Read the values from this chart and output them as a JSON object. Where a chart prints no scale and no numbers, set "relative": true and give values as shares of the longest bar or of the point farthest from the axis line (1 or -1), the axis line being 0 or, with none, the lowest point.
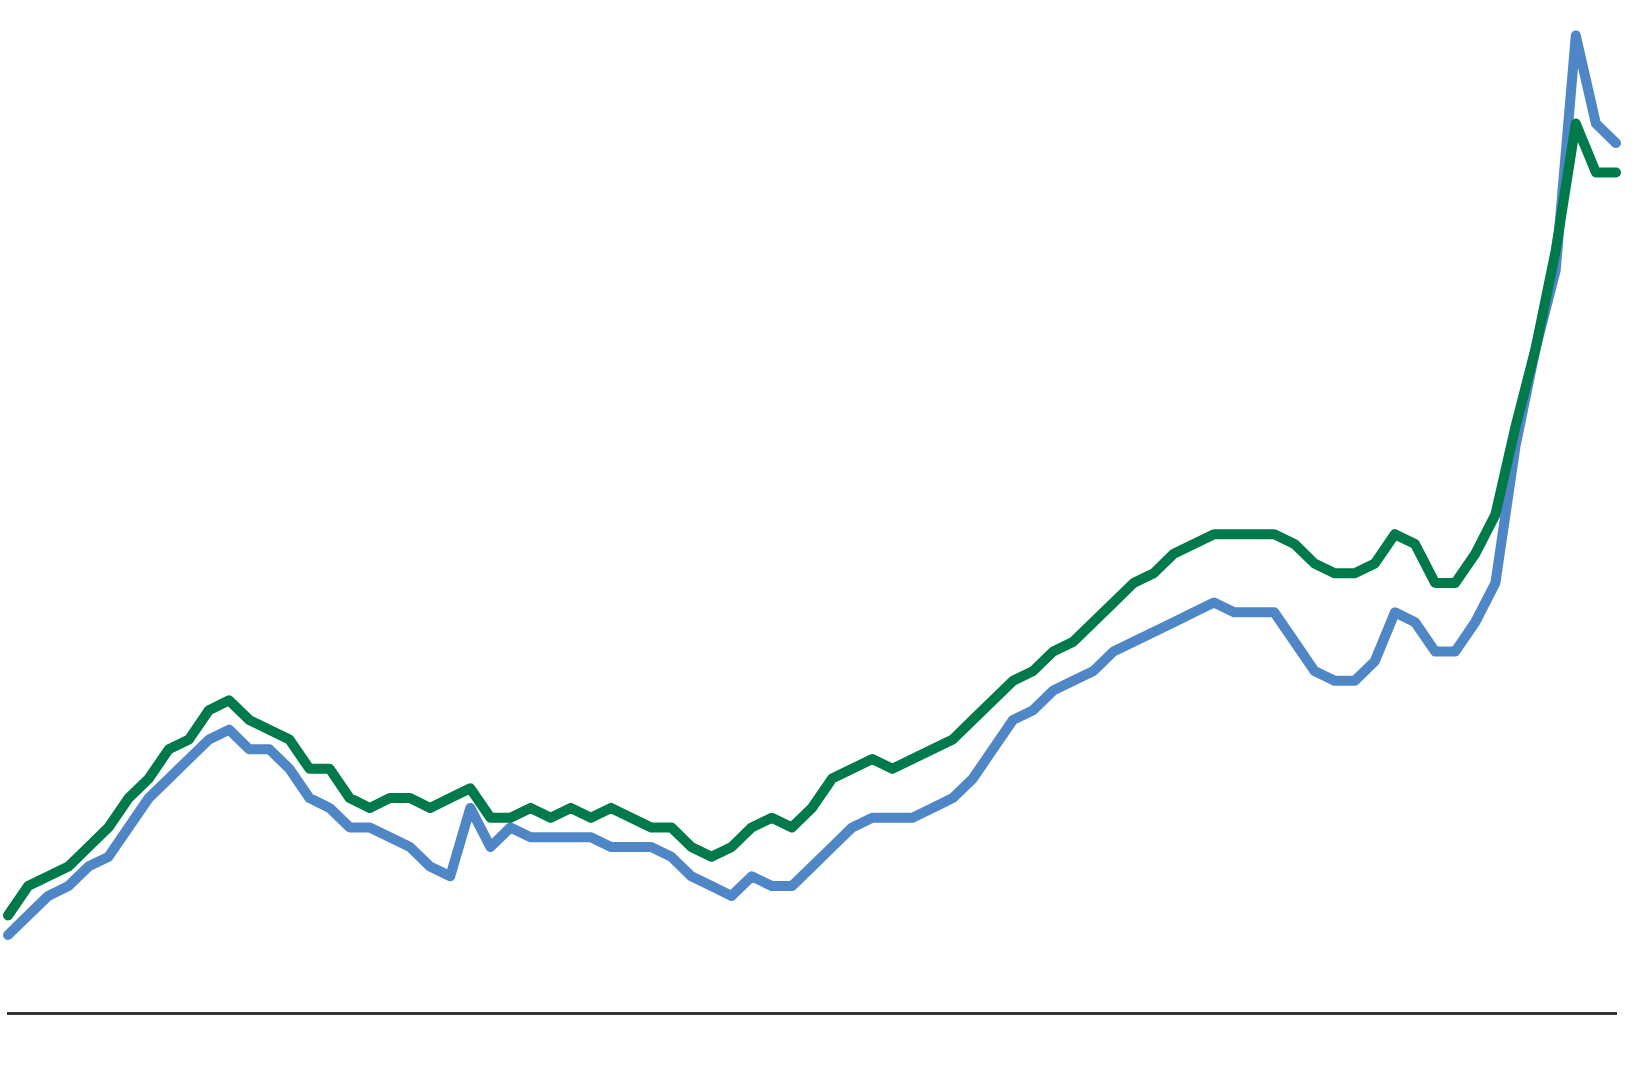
{
  "chart_data": {
    "type": "line",
    "relative": true,
    "grid": false,
    "legend": false,
    "marker": "none",
    "line_style": "solid",
    "categories": [
      null,
      null,
      null,
      null,
      null,
      null,
      null,
      null,
      null,
      null,
      null,
      null,
      null,
      null,
      null,
      null,
      null,
      null,
      null,
      null,
      null,
      null,
      null,
      null,
      null,
      null,
      null,
      null,
      null,
      null,
      null,
      null,
      null,
      null,
      null,
      null,
      null,
      null,
      null,
      null,
      null,
      null,
      null,
      null,
      null,
      null,
      null,
      null,
      null,
      null,
      null,
      null,
      null,
      null,
      null,
      null,
      null,
      null,
      null,
      null,
      null,
      null,
      null,
      null,
      null,
      null,
      null,
      null,
      null,
      null,
      null,
      null,
      null,
      null,
      null,
      null,
      null,
      null,
      null,
      null,
      null
    ],
    "series": [
      {
        "color": "#007a4a",
        "values": [
          0.1,
          0.13,
          0.14,
          0.15,
          0.17,
          0.19,
          0.22,
          0.24,
          0.27,
          0.28,
          0.31,
          0.32,
          0.3,
          0.29,
          0.28,
          0.25,
          0.25,
          0.22,
          0.21,
          0.22,
          0.22,
          0.21,
          0.22,
          0.23,
          0.2,
          0.2,
          0.21,
          0.2,
          0.21,
          0.2,
          0.21,
          0.2,
          0.19,
          0.19,
          0.17,
          0.16,
          0.17,
          0.19,
          0.2,
          0.19,
          0.21,
          0.24,
          0.25,
          0.26,
          0.25,
          0.26,
          0.27,
          0.28,
          0.3,
          0.32,
          0.34,
          0.35,
          0.37,
          0.38,
          0.4,
          0.42,
          0.44,
          0.45,
          0.47,
          0.48,
          0.49,
          0.49,
          0.49,
          0.49,
          0.48,
          0.46,
          0.45,
          0.45,
          0.46,
          0.49,
          0.48,
          0.44,
          0.44,
          0.47,
          0.51,
          0.6,
          0.68,
          0.78,
          0.91,
          0.86,
          0.86
        ]
      },
      {
        "color": "#4f86c6",
        "values": [
          0.08,
          0.1,
          0.12,
          0.13,
          0.15,
          0.16,
          0.19,
          0.22,
          0.24,
          0.26,
          0.28,
          0.29,
          0.27,
          0.27,
          0.25,
          0.22,
          0.21,
          0.19,
          0.19,
          0.18,
          0.17,
          0.15,
          0.14,
          0.21,
          0.17,
          0.19,
          0.18,
          0.18,
          0.18,
          0.18,
          0.17,
          0.17,
          0.17,
          0.16,
          0.14,
          0.13,
          0.12,
          0.14,
          0.13,
          0.13,
          0.15,
          0.17,
          0.19,
          0.2,
          0.2,
          0.2,
          0.21,
          0.22,
          0.24,
          0.27,
          0.3,
          0.31,
          0.33,
          0.34,
          0.35,
          0.37,
          0.38,
          0.39,
          0.4,
          0.41,
          0.42,
          0.41,
          0.41,
          0.41,
          0.38,
          0.35,
          0.34,
          0.34,
          0.36,
          0.41,
          0.4,
          0.37,
          0.37,
          0.4,
          0.44,
          0.58,
          0.68,
          0.76,
          1,
          0.91,
          0.89
        ]
      }
    ]
  }
}
